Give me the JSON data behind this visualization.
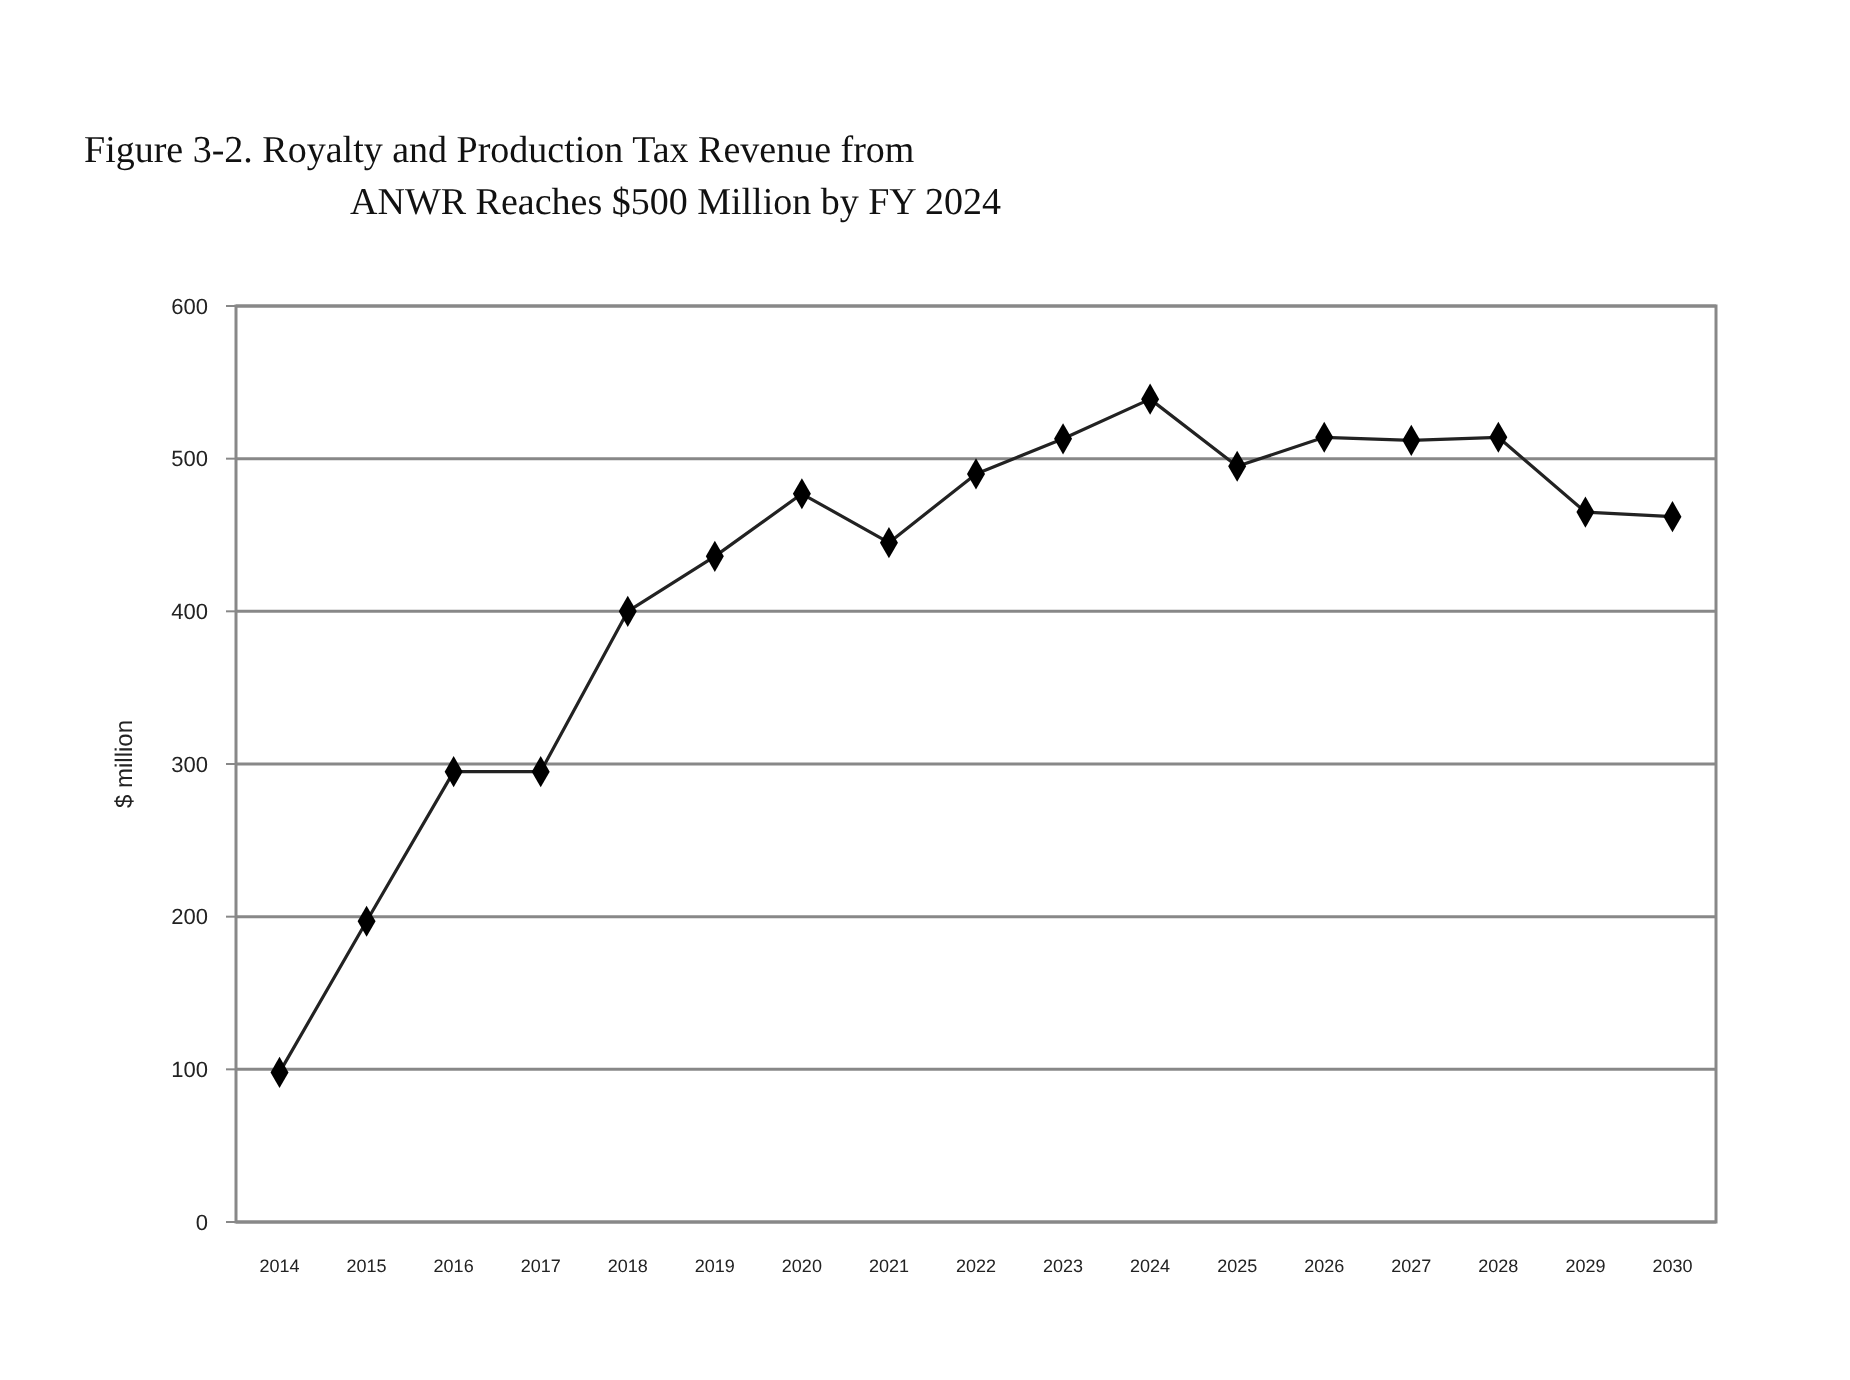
{
  "chart_data": {
    "type": "line",
    "title": "Figure 3-2. Royalty and Production Tax Revenue from ANWR Reaches $500 Million by FY 2024",
    "ylabel": "$ million",
    "categories": [
      "2014",
      "2015",
      "2016",
      "2017",
      "2018",
      "2019",
      "2020",
      "2021",
      "2022",
      "2023",
      "2024",
      "2025",
      "2026",
      "2027",
      "2028",
      "2029",
      "2030"
    ],
    "series": [
      {
        "color": "#222222",
        "values": [
          98,
          197,
          295,
          295,
          400,
          436,
          477,
          445,
          490,
          513,
          539,
          495,
          514,
          512,
          514,
          465,
          462
        ]
      }
    ],
    "ylim": [
      0,
      600
    ],
    "yticks": [
      0,
      100,
      200,
      300,
      400,
      500,
      600
    ],
    "grid": "y",
    "marker": "diamond",
    "line_style": "solid"
  }
}
